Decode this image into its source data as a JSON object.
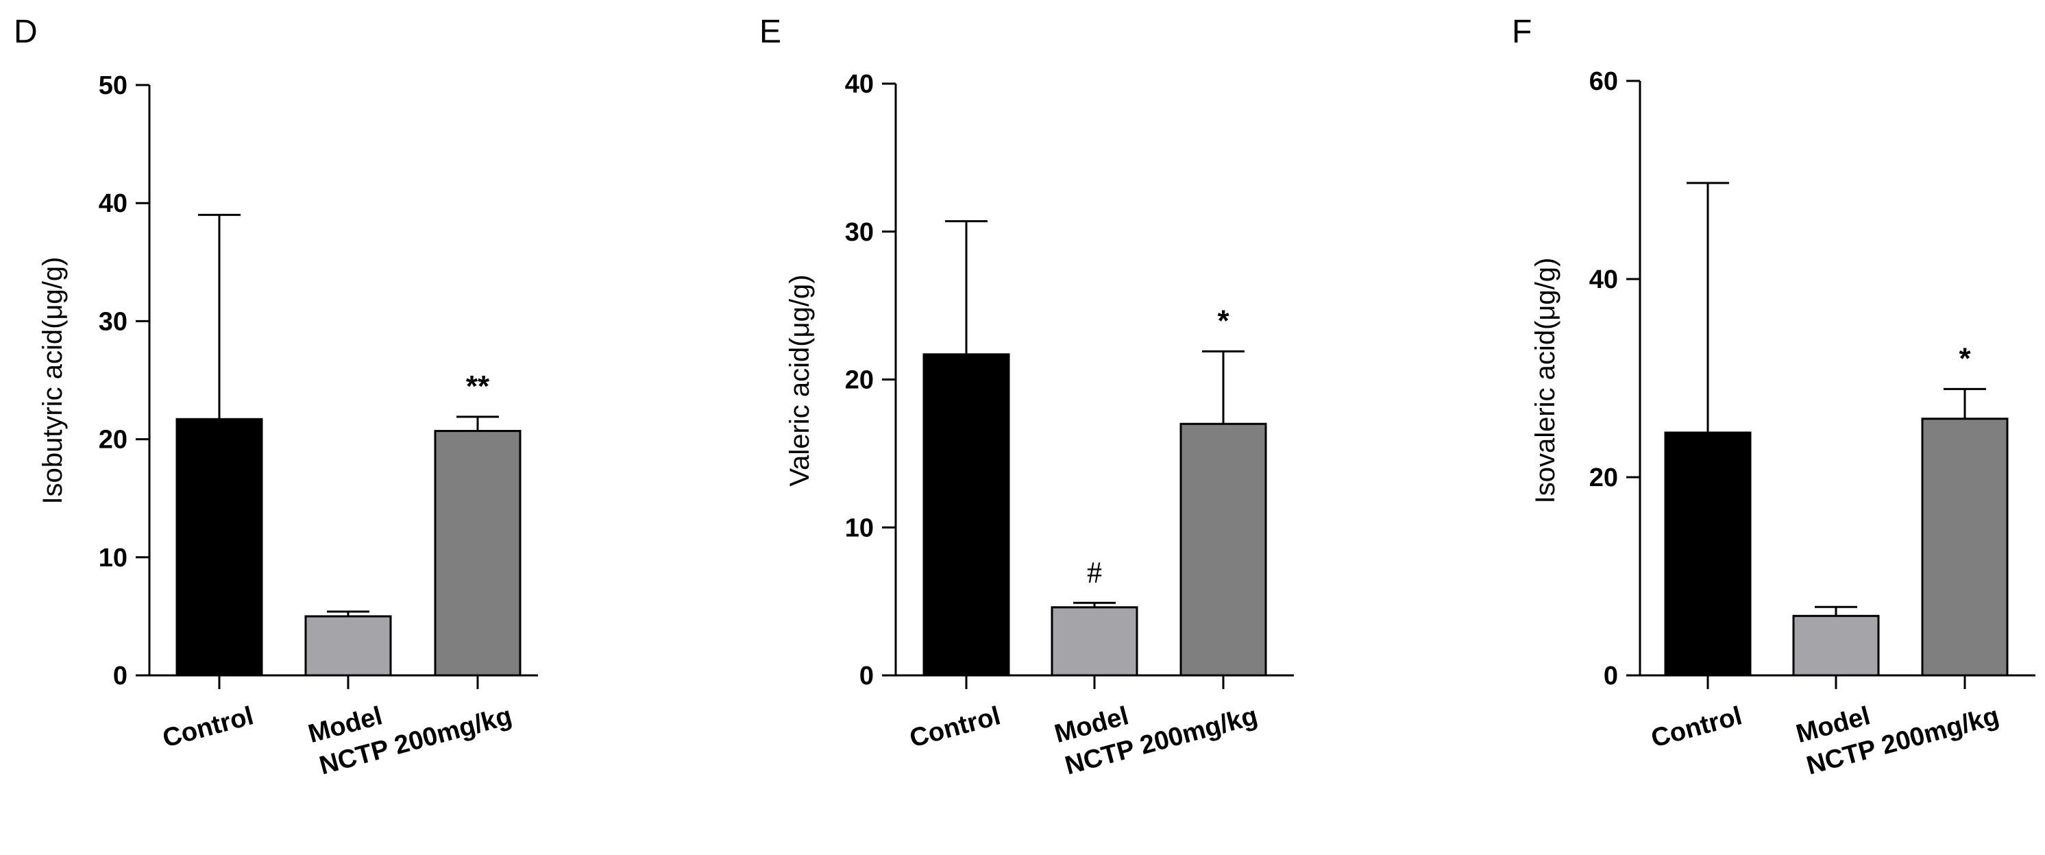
{
  "chart_data": [
    {
      "type": "bar",
      "panel": "D",
      "categories": [
        "Control",
        "Model",
        "NCTP 200mg/kg"
      ],
      "values": [
        21.7,
        5.0,
        20.7
      ],
      "error_upper": [
        39.0,
        5.4,
        21.9
      ],
      "significance": [
        "",
        "",
        "**"
      ],
      "ylabel": "Isobutyric acid(μg/g)",
      "ylim": [
        0,
        50
      ],
      "yticks": [
        0,
        10,
        20,
        30,
        40,
        50
      ],
      "bar_colors": [
        "#000000",
        "#a5a4a9",
        "#7f7f7f"
      ]
    },
    {
      "type": "bar",
      "panel": "E",
      "categories": [
        "Control",
        "Model",
        "NCTP 200mg/kg"
      ],
      "values": [
        21.7,
        4.6,
        17.0
      ],
      "error_upper": [
        30.7,
        4.9,
        21.9
      ],
      "significance": [
        "",
        "#",
        "*"
      ],
      "ylabel": "Valeric acid(μg/g)",
      "ylim": [
        0,
        40
      ],
      "yticks": [
        0,
        10,
        20,
        30,
        40
      ],
      "bar_colors": [
        "#000000",
        "#a5a4a9",
        "#7f7f7f"
      ]
    },
    {
      "type": "bar",
      "panel": "F",
      "categories": [
        "Control",
        "Model",
        "NCTP 200mg/kg"
      ],
      "values": [
        24.5,
        6.0,
        25.9
      ],
      "error_upper": [
        49.7,
        6.9,
        28.9
      ],
      "significance": [
        "",
        "",
        "*"
      ],
      "ylabel": "Isovaleric acid(μg/g)",
      "ylim": [
        0,
        60
      ],
      "yticks": [
        0,
        20,
        40,
        60
      ],
      "bar_colors": [
        "#000000",
        "#a5a4a9",
        "#7f7f7f"
      ]
    }
  ]
}
